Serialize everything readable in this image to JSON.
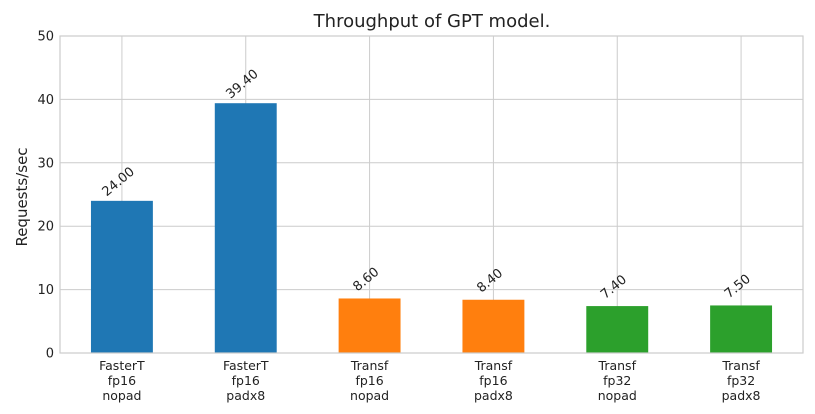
{
  "chart_data": {
    "type": "bar",
    "title": "Throughput of GPT model.",
    "xlabel": "",
    "ylabel": "Requests/sec",
    "ylim": [
      0,
      50
    ],
    "yticks": [
      0,
      10,
      20,
      30,
      40,
      50
    ],
    "grid": true,
    "categories": [
      [
        "FasterT",
        "fp16",
        "nopad"
      ],
      [
        "FasterT",
        "fp16",
        "padx8"
      ],
      [
        "Transf",
        "fp16",
        "nopad"
      ],
      [
        "Transf",
        "fp16",
        "padx8"
      ],
      [
        "Transf",
        "fp32",
        "nopad"
      ],
      [
        "Transf",
        "fp32",
        "padx8"
      ]
    ],
    "values": [
      24.0,
      39.4,
      8.6,
      8.4,
      7.4,
      7.5
    ],
    "data_labels": [
      "24.00",
      "39.40",
      "8.60",
      "8.40",
      "7.40",
      "7.50"
    ],
    "colors": [
      "#1f77b4",
      "#1f77b4",
      "#ff7f0e",
      "#ff7f0e",
      "#2ca02c",
      "#2ca02c"
    ]
  }
}
